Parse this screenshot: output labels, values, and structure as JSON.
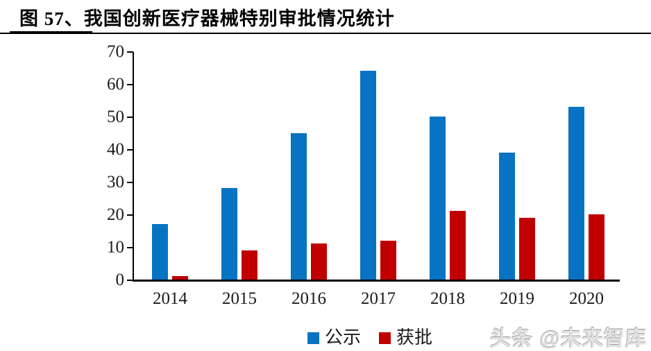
{
  "header": {
    "figure_title": "图 57、我国创新医疗器械特别审批情况统计"
  },
  "watermark": {
    "text": "头条 @未来智库"
  },
  "colors": {
    "series_blue": "#0873C2",
    "series_red": "#C00000",
    "axis_black": "#000000",
    "watermark_gray": "#E2E2E2"
  },
  "chart_data": {
    "type": "bar",
    "title": "图 57、我国创新医疗器械特别审批情况统计",
    "categories": [
      "2014",
      "2015",
      "2016",
      "2017",
      "2018",
      "2019",
      "2020"
    ],
    "series": [
      {
        "name": "公示",
        "color": "#0873C2",
        "values": [
          17,
          28,
          45,
          64,
          50,
          39,
          53
        ]
      },
      {
        "name": "获批",
        "color": "#C00000",
        "values": [
          1,
          9,
          11,
          12,
          21,
          19,
          20
        ]
      }
    ],
    "xlabel": "",
    "ylabel": "",
    "ylim": [
      0,
      70
    ],
    "ytick_step": 10,
    "y_tick_labels": [
      "0",
      "10",
      "20",
      "30",
      "40",
      "50",
      "60",
      "70"
    ],
    "grid": false,
    "legend_position": "bottom",
    "legend": [
      "公示",
      "获批"
    ]
  }
}
